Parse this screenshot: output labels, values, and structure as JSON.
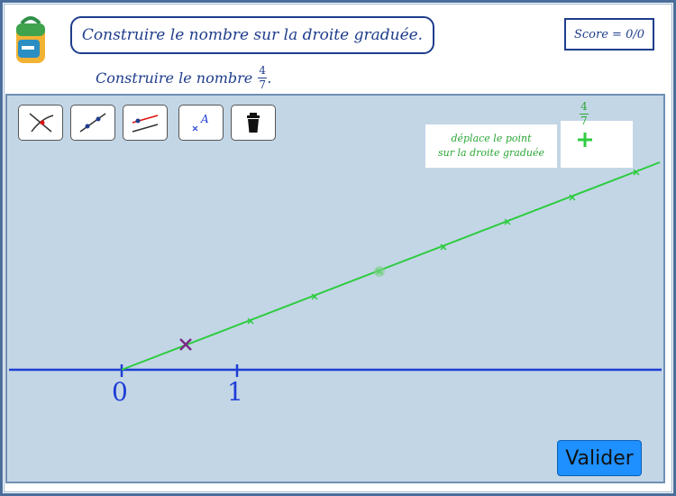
{
  "header": {
    "title": "Construire le nombre sur la droite graduée.",
    "score": "Score = 0/0",
    "subtitle_prefix": "Construire le nombre",
    "fraction": {
      "numerator": "4",
      "denominator": "7"
    },
    "subtitle_suffix": "."
  },
  "toolbar": {
    "tools": [
      {
        "icon": "intersect-icon"
      },
      {
        "icon": "point-on-line-icon"
      },
      {
        "icon": "parallel-line-icon"
      },
      {
        "icon": "label-text-icon",
        "glyph": "A"
      },
      {
        "icon": "trash-icon"
      }
    ]
  },
  "hint": {
    "line1": "déplace le point",
    "line2": "sur la droite graduée"
  },
  "target": {
    "numerator": "4",
    "denominator": "7"
  },
  "axis": {
    "labels": [
      "0",
      "1"
    ],
    "colors": {
      "axis": "#1f3dd6",
      "graduated": "#2ecc40",
      "point": "#7b2a86"
    }
  },
  "actions": {
    "validate": "Valider"
  }
}
